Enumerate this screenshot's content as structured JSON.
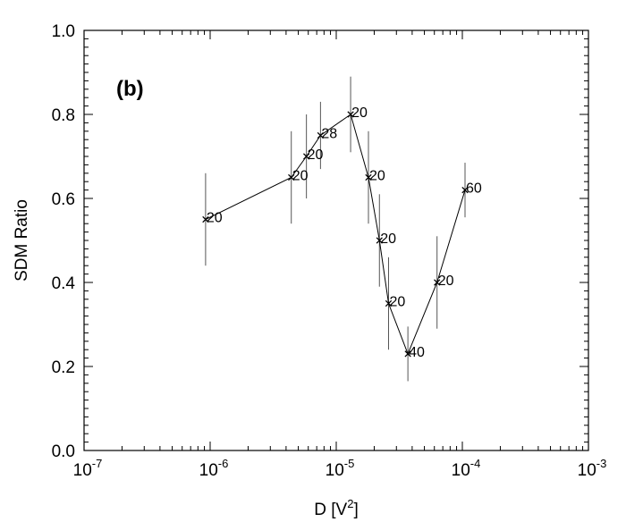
{
  "chart_data": {
    "type": "scatter",
    "panel_label": "(b)",
    "xlabel": {
      "base": "D [V",
      "sup": "2",
      "end": "]"
    },
    "ylabel": "SDM Ratio",
    "xscale": "log",
    "xlim": [
      1e-07,
      0.001
    ],
    "ylim": [
      0.0,
      1.0
    ],
    "x_ticks": [
      {
        "value": 1e-07,
        "base": "10",
        "exp": "-7"
      },
      {
        "value": 1e-06,
        "base": "10",
        "exp": "-6"
      },
      {
        "value": 1e-05,
        "base": "10",
        "exp": "-5"
      },
      {
        "value": 0.0001,
        "base": "10",
        "exp": "-4"
      },
      {
        "value": 0.001,
        "base": "10",
        "exp": "-3"
      }
    ],
    "y_ticks": [
      {
        "value": 0.0,
        "label": "0.0"
      },
      {
        "value": 0.2,
        "label": "0.2"
      },
      {
        "value": 0.4,
        "label": "0.4"
      },
      {
        "value": 0.6,
        "label": "0.6"
      },
      {
        "value": 0.8,
        "label": "0.8"
      },
      {
        "value": 1.0,
        "label": "1.0"
      }
    ],
    "series": [
      {
        "marker": "x",
        "connected": true,
        "points": [
          {
            "x": 9.2e-07,
            "y": 0.55,
            "err": 0.11,
            "label": "20"
          },
          {
            "x": 4.4e-06,
            "y": 0.65,
            "err": 0.11,
            "label": "20"
          },
          {
            "x": 5.8e-06,
            "y": 0.7,
            "err": 0.1,
            "label": "20"
          },
          {
            "x": 7.5e-06,
            "y": 0.75,
            "err": 0.08,
            "label": "28"
          },
          {
            "x": 1.3e-05,
            "y": 0.8,
            "err": 0.09,
            "label": "20"
          },
          {
            "x": 1.8e-05,
            "y": 0.65,
            "err": 0.11,
            "label": "20"
          },
          {
            "x": 2.2e-05,
            "y": 0.5,
            "err": 0.11,
            "label": "20"
          },
          {
            "x": 2.6e-05,
            "y": 0.35,
            "err": 0.11,
            "label": "20"
          },
          {
            "x": 3.7e-05,
            "y": 0.23,
            "err": 0.065,
            "label": "40"
          },
          {
            "x": 6.3e-05,
            "y": 0.4,
            "err": 0.11,
            "label": "20"
          },
          {
            "x": 0.000105,
            "y": 0.62,
            "err": 0.065,
            "label": "60"
          }
        ]
      }
    ],
    "grid": false,
    "minor_ticks": true
  }
}
